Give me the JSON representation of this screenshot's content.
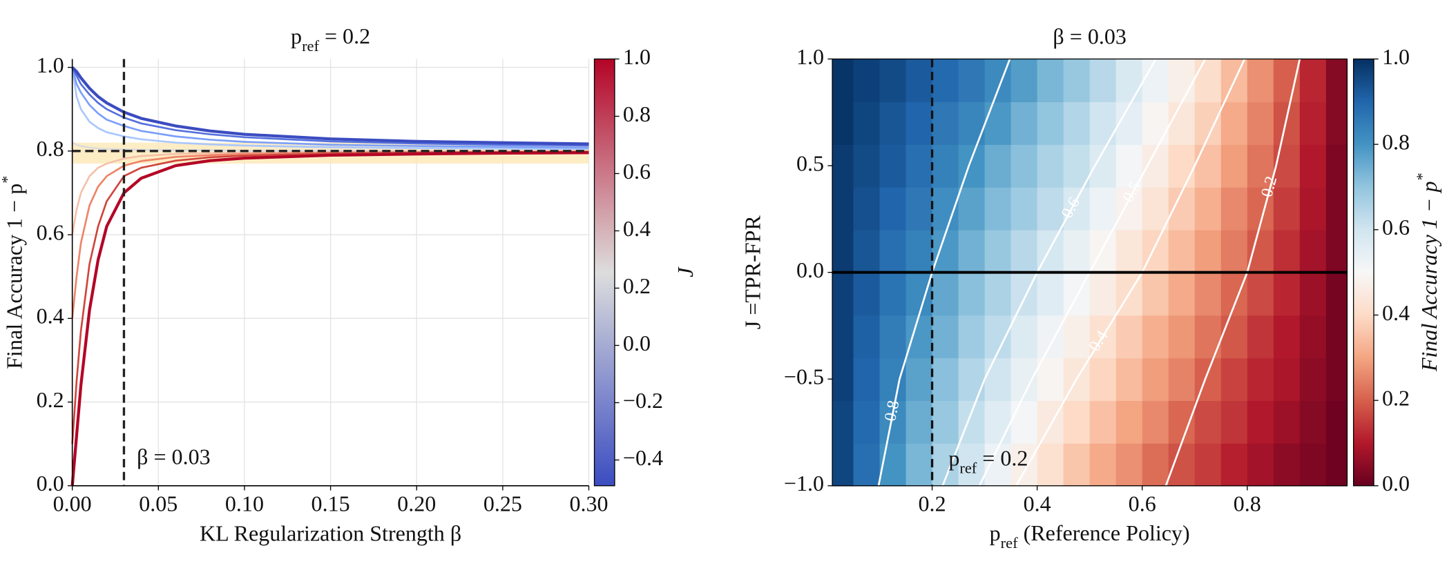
{
  "chart_data": [
    {
      "type": "line",
      "title": {
        "base": "p",
        "sub": "ref",
        "rest": " = 0.2"
      },
      "xlabel": "KL Regularization Strength β",
      "ylabel": {
        "base": "Final Accuracy 1 − p",
        "sup": "*"
      },
      "annotation": "β = 0.03",
      "x": [
        0,
        0.0025,
        0.005,
        0.01,
        0.015,
        0.02,
        0.03,
        0.04,
        0.06,
        0.08,
        0.1,
        0.15,
        0.2,
        0.25,
        0.3
      ],
      "series": [
        {
          "color": "#dddcdc",
          "values": [
            0.82,
            0.815,
            0.812,
            0.808,
            0.806,
            0.805,
            0.804,
            0.803,
            0.802,
            0.802,
            0.801,
            0.801,
            0.8,
            0.8,
            0.8
          ]
        },
        {
          "color": "#f5c0a7",
          "values": [
            0.6,
            0.66,
            0.7,
            0.74,
            0.76,
            0.77,
            0.782,
            0.788,
            0.793,
            0.795,
            0.796,
            0.798,
            0.799,
            0.799,
            0.8
          ]
        },
        {
          "color": "#aac7fd",
          "values": [
            1.0,
            0.93,
            0.9,
            0.87,
            0.855,
            0.845,
            0.835,
            0.828,
            0.82,
            0.816,
            0.813,
            0.809,
            0.807,
            0.806,
            0.805
          ]
        },
        {
          "color": "#ee8468",
          "values": [
            0.4,
            0.5,
            0.58,
            0.67,
            0.715,
            0.74,
            0.765,
            0.776,
            0.786,
            0.79,
            0.793,
            0.796,
            0.797,
            0.798,
            0.799
          ]
        },
        {
          "color": "#7b9ff9",
          "values": [
            1.0,
            0.96,
            0.94,
            0.91,
            0.89,
            0.875,
            0.86,
            0.848,
            0.835,
            0.827,
            0.822,
            0.815,
            0.812,
            0.81,
            0.808
          ]
        },
        {
          "color": "#cf453c",
          "values": [
            0.1,
            0.25,
            0.37,
            0.53,
            0.62,
            0.68,
            0.74,
            0.76,
            0.777,
            0.785,
            0.789,
            0.794,
            0.796,
            0.797,
            0.798
          ]
        },
        {
          "color": "#5470de",
          "values": [
            1.0,
            0.98,
            0.96,
            0.935,
            0.915,
            0.9,
            0.88,
            0.866,
            0.85,
            0.84,
            0.833,
            0.823,
            0.818,
            0.815,
            0.813
          ]
        },
        {
          "color": "#b40426",
          "values": [
            0,
            0.12,
            0.24,
            0.42,
            0.54,
            0.62,
            0.7,
            0.735,
            0.765,
            0.777,
            0.783,
            0.79,
            0.793,
            0.795,
            0.796
          ]
        },
        {
          "color": "#3b4cc0",
          "values": [
            1.0,
            0.99,
            0.975,
            0.95,
            0.93,
            0.915,
            0.893,
            0.878,
            0.86,
            0.848,
            0.84,
            0.829,
            0.823,
            0.82,
            0.817
          ]
        }
      ],
      "xlim": [
        0,
        0.3
      ],
      "ylim": [
        0,
        1.02
      ],
      "xticks": [
        {
          "value": 0,
          "label": "0.00"
        },
        0.05,
        {
          "value": 0.1,
          "label": "0.10"
        },
        0.15,
        {
          "value": 0.2,
          "label": "0.20"
        },
        0.25,
        {
          "value": 0.3,
          "label": "0.30"
        }
      ],
      "yticks": [
        {
          "value": 0,
          "label": "0.0"
        },
        0.2,
        0.4,
        0.6,
        0.8,
        {
          "value": 1,
          "label": "1.0"
        }
      ],
      "grid": true,
      "hline": 0.8,
      "vline": 0.03,
      "band": [
        0.77,
        0.82
      ],
      "band_color": "#fde9b6",
      "colorbar": {
        "label": "J",
        "colormap": "coolwarm",
        "lim": [
          -0.49,
          1.0
        ],
        "ticks": [
          {
            "value": -0.4,
            "label": "−0.4"
          },
          {
            "value": -0.2,
            "label": "−0.2"
          },
          {
            "value": 0,
            "label": "0.0"
          },
          0.2,
          0.4,
          0.6,
          0.8,
          {
            "value": 1,
            "label": "1.0"
          }
        ]
      }
    },
    {
      "type": "heatmap",
      "title": "β = 0.03",
      "xlabel": {
        "base": "p",
        "sub": "ref",
        "rest": " (Reference Policy)"
      },
      "ylabel": "J =TPR-FPR",
      "annotation": {
        "base": "p",
        "sub": "ref",
        "rest": " = 0.2"
      },
      "x": [
        0.025,
        0.075,
        0.125,
        0.175,
        0.225,
        0.275,
        0.325,
        0.375,
        0.425,
        0.475,
        0.525,
        0.575,
        0.625,
        0.675,
        0.725,
        0.775,
        0.825,
        0.875,
        0.925,
        0.975
      ],
      "y": [
        -0.9,
        -0.7,
        -0.5,
        -0.3,
        -0.1,
        0.1,
        0.3,
        0.5,
        0.7,
        0.9
      ],
      "z": [
        [
          0.96,
          0.88,
          0.8,
          0.73,
          0.66,
          0.6,
          0.53,
          0.47,
          0.42,
          0.36,
          0.31,
          0.27,
          0.22,
          0.18,
          0.15,
          0.11,
          0.08,
          0.05,
          0.03,
          0.01
        ],
        [
          0.96,
          0.89,
          0.82,
          0.75,
          0.69,
          0.62,
          0.56,
          0.51,
          0.45,
          0.4,
          0.35,
          0.3,
          0.26,
          0.21,
          0.17,
          0.14,
          0.1,
          0.07,
          0.04,
          0.01
        ],
        [
          0.97,
          0.9,
          0.84,
          0.77,
          0.71,
          0.65,
          0.6,
          0.54,
          0.49,
          0.44,
          0.39,
          0.34,
          0.29,
          0.25,
          0.2,
          0.16,
          0.12,
          0.09,
          0.05,
          0.02
        ],
        [
          0.97,
          0.91,
          0.85,
          0.79,
          0.74,
          0.68,
          0.63,
          0.57,
          0.52,
          0.47,
          0.42,
          0.37,
          0.32,
          0.28,
          0.23,
          0.19,
          0.14,
          0.1,
          0.06,
          0.02
        ],
        [
          0.97,
          0.92,
          0.87,
          0.82,
          0.76,
          0.71,
          0.66,
          0.61,
          0.56,
          0.51,
          0.46,
          0.41,
          0.36,
          0.31,
          0.26,
          0.21,
          0.17,
          0.12,
          0.07,
          0.02
        ],
        [
          0.98,
          0.93,
          0.88,
          0.84,
          0.79,
          0.74,
          0.69,
          0.64,
          0.59,
          0.54,
          0.49,
          0.44,
          0.39,
          0.34,
          0.29,
          0.24,
          0.19,
          0.13,
          0.08,
          0.03
        ],
        [
          0.98,
          0.94,
          0.9,
          0.86,
          0.81,
          0.77,
          0.72,
          0.68,
          0.63,
          0.58,
          0.53,
          0.48,
          0.43,
          0.37,
          0.32,
          0.26,
          0.21,
          0.15,
          0.09,
          0.03
        ],
        [
          0.98,
          0.95,
          0.92,
          0.88,
          0.84,
          0.8,
          0.75,
          0.71,
          0.66,
          0.62,
          0.57,
          0.51,
          0.46,
          0.4,
          0.35,
          0.29,
          0.23,
          0.17,
          0.1,
          0.03
        ],
        [
          0.99,
          0.96,
          0.93,
          0.9,
          0.86,
          0.83,
          0.79,
          0.74,
          0.7,
          0.65,
          0.6,
          0.55,
          0.49,
          0.44,
          0.38,
          0.31,
          0.25,
          0.18,
          0.11,
          0.04
        ],
        [
          0.99,
          0.97,
          0.95,
          0.92,
          0.89,
          0.86,
          0.82,
          0.78,
          0.73,
          0.69,
          0.64,
          0.58,
          0.53,
          0.47,
          0.41,
          0.34,
          0.27,
          0.2,
          0.12,
          0.04
        ]
      ],
      "contours": [
        {
          "level": 0.8,
          "x": [
            0.098,
            0.138,
            0.2,
            0.27,
            0.348
          ],
          "y": [
            -1,
            -0.5,
            0,
            0.5,
            1
          ]
        },
        {
          "level": 0.6,
          "x": [
            0.22,
            0.3,
            0.4,
            0.51,
            0.626
          ],
          "y": [
            -1,
            -0.5,
            0,
            0.5,
            1
          ]
        },
        {
          "level": 0.5,
          "x": [
            0.29,
            0.39,
            0.5,
            0.61,
            0.72
          ],
          "y": [
            -1,
            -0.5,
            0,
            0.5,
            1
          ]
        },
        {
          "level": 0.4,
          "x": [
            0.36,
            0.475,
            0.6,
            0.7,
            0.795
          ],
          "y": [
            -1,
            -0.5,
            0,
            0.5,
            1
          ]
        },
        {
          "level": 0.2,
          "x": [
            0.645,
            0.72,
            0.8,
            0.855,
            0.9
          ],
          "y": [
            -1,
            -0.5,
            0,
            0.5,
            1
          ]
        }
      ],
      "contour_color": "#ffffff",
      "xlim": [
        0.01,
        0.99
      ],
      "ylim": [
        -1,
        1
      ],
      "xticks": [
        0.2,
        0.4,
        0.6,
        0.8
      ],
      "yticks": [
        {
          "value": -1,
          "label": "−1.0"
        },
        {
          "value": -0.5,
          "label": "−0.5"
        },
        {
          "value": 0,
          "label": "0.0"
        },
        0.5,
        {
          "value": 1,
          "label": "1.0"
        }
      ],
      "hline": 0,
      "vline": 0.2,
      "colorbar": {
        "label": {
          "base": "Final Accuracy 1 − p",
          "sup": "*"
        },
        "colormap": "RdBu",
        "lim": [
          0,
          1
        ],
        "ticks": [
          {
            "value": 0,
            "label": "0.0"
          },
          0.2,
          0.4,
          0.6,
          0.8,
          {
            "value": 1,
            "label": "1.0"
          }
        ]
      }
    }
  ]
}
